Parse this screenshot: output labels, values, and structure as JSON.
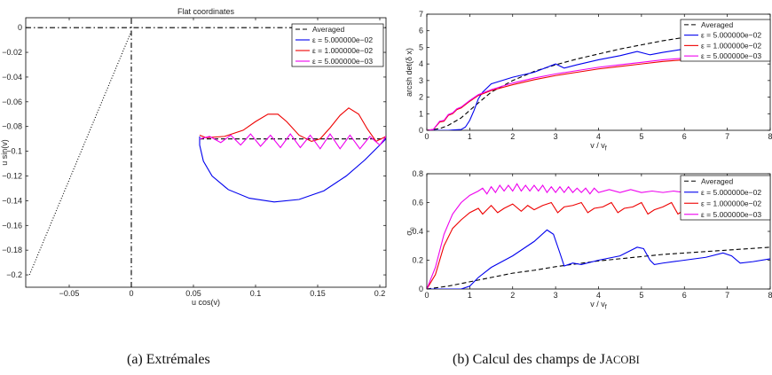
{
  "captions": {
    "a": "(a) Extrémales",
    "b_prefix": "(b) Calcul des champs de J",
    "b_smallcaps": "ACOBI"
  },
  "chart_data": [
    {
      "id": "extremales",
      "type": "line",
      "title": "Flat coordinates",
      "xlabel": "u cos(v)",
      "ylabel": "u sin(v)",
      "xlim": [
        -0.085,
        0.205
      ],
      "ylim": [
        -0.21,
        0.008
      ],
      "xticks": [
        -0.05,
        0,
        0.05,
        0.1,
        0.15,
        0.2
      ],
      "xtick_labels": [
        "−0.05",
        "0",
        "0.05",
        "0.1",
        "0.15",
        "0.2"
      ],
      "yticks": [
        0,
        -0.02,
        -0.04,
        -0.06,
        -0.08,
        -0.1,
        -0.12,
        -0.14,
        -0.16,
        -0.18,
        -0.2
      ],
      "ytick_labels": [
        "0",
        "−0.02",
        "−0.04",
        "−0.06",
        "−0.08",
        "−0.1",
        "−0.12",
        "−0.14",
        "−0.16",
        "−0.18",
        "−0.2"
      ],
      "grid": false,
      "legend_position": "top-right",
      "legend": [
        {
          "label": "Averaged",
          "color": "#000000",
          "dash": "dashed"
        },
        {
          "label": "ε = 5.000000e−02",
          "color": "#0000ee",
          "dash": "solid"
        },
        {
          "label": "ε = 1.000000e−02",
          "color": "#ee0000",
          "dash": "solid"
        },
        {
          "label": "ε = 5.000000e−03",
          "color": "#ee00ee",
          "dash": "solid"
        }
      ],
      "series": [
        {
          "color": "#000000",
          "dash": "dashed",
          "x": [
            0.055,
            0.205
          ],
          "y": [
            -0.09,
            -0.09
          ]
        },
        {
          "color": "#0000ee",
          "dash": "solid",
          "x": [
            0.055,
            0.055,
            0.058,
            0.065,
            0.078,
            0.095,
            0.115,
            0.135,
            0.155,
            0.173,
            0.188,
            0.2,
            0.205
          ],
          "y": [
            -0.088,
            -0.095,
            -0.108,
            -0.12,
            -0.131,
            -0.138,
            -0.141,
            -0.139,
            -0.132,
            -0.12,
            -0.107,
            -0.095,
            -0.09
          ]
        },
        {
          "color": "#ee0000",
          "dash": "solid",
          "x": [
            0.055,
            0.06,
            0.075,
            0.09,
            0.1,
            0.11,
            0.118,
            0.125,
            0.135,
            0.145,
            0.152,
            0.16,
            0.168,
            0.175,
            0.183,
            0.19,
            0.197,
            0.205
          ],
          "y": [
            -0.087,
            -0.089,
            -0.088,
            -0.083,
            -0.076,
            -0.07,
            -0.07,
            -0.076,
            -0.087,
            -0.092,
            -0.09,
            -0.081,
            -0.071,
            -0.065,
            -0.07,
            -0.082,
            -0.092,
            -0.088
          ]
        },
        {
          "color": "#ee00ee",
          "dash": "solid",
          "x": [
            0.055,
            0.063,
            0.072,
            0.08,
            0.088,
            0.096,
            0.104,
            0.112,
            0.12,
            0.128,
            0.136,
            0.144,
            0.152,
            0.16,
            0.168,
            0.176,
            0.184,
            0.192,
            0.2,
            0.205
          ],
          "y": [
            -0.09,
            -0.088,
            -0.093,
            -0.087,
            -0.095,
            -0.086,
            -0.096,
            -0.087,
            -0.097,
            -0.086,
            -0.097,
            -0.087,
            -0.098,
            -0.086,
            -0.098,
            -0.087,
            -0.098,
            -0.088,
            -0.095,
            -0.088
          ]
        },
        {
          "color": "#000000",
          "dash": "dashdot",
          "x": [
            -0.085,
            0.205
          ],
          "y": [
            0,
            0
          ]
        },
        {
          "color": "#000000",
          "dash": "dashdot",
          "x": [
            0,
            0
          ],
          "y": [
            -0.21,
            0.008
          ]
        },
        {
          "color": "#000000",
          "dash": "dotted",
          "x": [
            -0.082,
            0
          ],
          "y": [
            -0.2,
            -0.003
          ]
        }
      ]
    },
    {
      "id": "arcsh",
      "type": "line",
      "title": "",
      "xlabel": "v / v_f",
      "ylabel": "arcsh det(δ x)",
      "xlim": [
        0,
        8
      ],
      "ylim": [
        0,
        7
      ],
      "xticks": [
        0,
        1,
        2,
        3,
        4,
        5,
        6,
        7,
        8
      ],
      "yticks": [
        0,
        1,
        2,
        3,
        4,
        5,
        6,
        7
      ],
      "grid": false,
      "legend_position": "top-right",
      "legend": [
        {
          "label": "Averaged",
          "color": "#000000",
          "dash": "dashed"
        },
        {
          "label": "ε = 5.000000e−02",
          "color": "#0000ee",
          "dash": "solid"
        },
        {
          "label": "ε = 1.000000e−02",
          "color": "#ee0000",
          "dash": "solid"
        },
        {
          "label": "ε = 5.000000e−03",
          "color": "#ee00ee",
          "dash": "solid"
        }
      ],
      "series": [
        {
          "color": "#000000",
          "dash": "dashed",
          "x": [
            0,
            0.3,
            0.5,
            0.8,
            1.0,
            1.2,
            1.5,
            2.0,
            2.5,
            3.0,
            3.5,
            4.0,
            4.5,
            5.0,
            5.5,
            6.0,
            6.5,
            7.0,
            7.5,
            8.0
          ],
          "y": [
            0,
            0.1,
            0.3,
            0.75,
            1.2,
            1.65,
            2.3,
            3.0,
            3.55,
            3.95,
            4.3,
            4.6,
            4.9,
            5.15,
            5.4,
            5.6,
            5.8,
            5.95,
            6.1,
            6.25
          ]
        },
        {
          "color": "#0000ee",
          "dash": "solid",
          "x": [
            0,
            0.5,
            0.8,
            0.9,
            1.0,
            1.1,
            1.2,
            1.3,
            1.5,
            2.0,
            2.5,
            2.8,
            3.0,
            3.2,
            3.5,
            4.0,
            4.5,
            4.9,
            5.2,
            5.5,
            6.0,
            6.5,
            7.0,
            7.5,
            8.0
          ],
          "y": [
            0,
            0,
            0.05,
            0.2,
            0.6,
            1.2,
            1.9,
            2.3,
            2.8,
            3.2,
            3.5,
            3.8,
            4.0,
            3.75,
            3.95,
            4.25,
            4.5,
            4.75,
            4.55,
            4.7,
            4.9,
            5.0,
            5.1,
            5.15,
            5.2
          ]
        },
        {
          "color": "#ee0000",
          "dash": "solid",
          "x": [
            0,
            0.15,
            0.3,
            0.4,
            0.5,
            0.6,
            0.7,
            0.8,
            1.0,
            1.2,
            1.5,
            2.0,
            2.5,
            3.0,
            3.5,
            4.0,
            4.5,
            5.0,
            5.5,
            6.0,
            6.5,
            7.0,
            7.5,
            8.0
          ],
          "y": [
            0,
            0.05,
            0.5,
            0.55,
            0.9,
            1.0,
            1.25,
            1.35,
            1.75,
            2.1,
            2.4,
            2.75,
            3.05,
            3.3,
            3.5,
            3.7,
            3.85,
            4.0,
            4.15,
            4.25,
            4.4,
            4.5,
            4.6,
            4.7
          ]
        },
        {
          "color": "#ee00ee",
          "dash": "solid",
          "x": [
            0,
            0.15,
            0.3,
            0.4,
            0.5,
            0.6,
            0.7,
            0.8,
            1.0,
            1.2,
            1.5,
            2.0,
            2.5,
            3.0,
            3.5,
            4.0,
            4.5,
            5.0,
            5.5,
            6.0,
            6.5,
            7.0,
            7.5,
            8.0
          ],
          "y": [
            0,
            0.05,
            0.55,
            0.6,
            0.95,
            1.05,
            1.3,
            1.4,
            1.8,
            2.15,
            2.45,
            2.85,
            3.15,
            3.4,
            3.6,
            3.8,
            3.95,
            4.1,
            4.25,
            4.35,
            4.5,
            4.6,
            4.7,
            4.8
          ]
        }
      ]
    },
    {
      "id": "sigma",
      "type": "line",
      "title": "",
      "xlabel": "v / v_f",
      "ylabel": "σ_n",
      "xlim": [
        0,
        8
      ],
      "ylim": [
        0,
        0.8
      ],
      "xticks": [
        0,
        1,
        2,
        3,
        4,
        5,
        6,
        7,
        8
      ],
      "yticks": [
        0,
        0.2,
        0.4,
        0.6,
        0.8
      ],
      "ytick_labels": [
        "0",
        "0.2",
        "0.4",
        "0.6",
        "0.8"
      ],
      "grid": false,
      "legend_position": "top-right",
      "legend": [
        {
          "label": "Averaged",
          "color": "#000000",
          "dash": "dashed"
        },
        {
          "label": "ε = 5.000000e−02",
          "color": "#0000ee",
          "dash": "solid"
        },
        {
          "label": "ε = 1.000000e−02",
          "color": "#ee0000",
          "dash": "solid"
        },
        {
          "label": "ε = 5.000000e−03",
          "color": "#ee00ee",
          "dash": "solid"
        }
      ],
      "series": [
        {
          "color": "#000000",
          "dash": "dashed",
          "x": [
            0,
            0.5,
            1,
            1.5,
            2,
            2.5,
            3,
            3.5,
            4,
            4.5,
            5,
            5.5,
            6,
            6.5,
            7,
            7.5,
            8
          ],
          "y": [
            0,
            0.02,
            0.05,
            0.08,
            0.11,
            0.13,
            0.155,
            0.175,
            0.195,
            0.21,
            0.225,
            0.24,
            0.25,
            0.26,
            0.27,
            0.28,
            0.29
          ]
        },
        {
          "color": "#0000ee",
          "dash": "solid",
          "x": [
            0,
            0.8,
            1.0,
            1.2,
            1.5,
            2.0,
            2.5,
            2.8,
            2.95,
            3.1,
            3.2,
            3.4,
            3.6,
            4.0,
            4.5,
            4.9,
            5.05,
            5.2,
            5.3,
            5.5,
            6.0,
            6.5,
            6.9,
            7.1,
            7.3,
            7.6,
            8.0
          ],
          "y": [
            0,
            0,
            0.02,
            0.08,
            0.15,
            0.23,
            0.33,
            0.41,
            0.38,
            0.25,
            0.16,
            0.18,
            0.17,
            0.2,
            0.23,
            0.29,
            0.28,
            0.2,
            0.17,
            0.18,
            0.2,
            0.22,
            0.25,
            0.23,
            0.18,
            0.19,
            0.21
          ]
        },
        {
          "color": "#ee0000",
          "dash": "solid",
          "x": [
            0,
            0.2,
            0.4,
            0.6,
            0.8,
            1.0,
            1.2,
            1.3,
            1.5,
            1.65,
            1.8,
            2.0,
            2.2,
            2.35,
            2.5,
            2.7,
            2.9,
            3.05,
            3.2,
            3.4,
            3.6,
            3.75,
            3.9,
            4.1,
            4.3,
            4.45,
            4.6,
            4.8,
            5.0,
            5.15,
            5.3,
            5.5,
            5.7,
            5.85,
            6.0,
            6.2,
            6.4,
            6.55,
            6.7,
            6.9,
            7.1,
            7.25,
            7.4,
            7.6,
            7.8,
            8.0
          ],
          "y": [
            0,
            0.1,
            0.3,
            0.42,
            0.48,
            0.53,
            0.56,
            0.52,
            0.58,
            0.53,
            0.56,
            0.59,
            0.54,
            0.58,
            0.55,
            0.58,
            0.6,
            0.53,
            0.57,
            0.58,
            0.6,
            0.53,
            0.56,
            0.57,
            0.6,
            0.53,
            0.56,
            0.57,
            0.6,
            0.52,
            0.55,
            0.57,
            0.6,
            0.52,
            0.55,
            0.57,
            0.6,
            0.52,
            0.55,
            0.57,
            0.6,
            0.52,
            0.55,
            0.57,
            0.6,
            0.51
          ]
        },
        {
          "color": "#ee00ee",
          "dash": "solid",
          "x": [
            0,
            0.2,
            0.4,
            0.6,
            0.8,
            1.0,
            1.2,
            1.3,
            1.4,
            1.5,
            1.6,
            1.7,
            1.8,
            1.9,
            2.0,
            2.1,
            2.2,
            2.3,
            2.4,
            2.5,
            2.6,
            2.7,
            2.8,
            2.9,
            3.0,
            3.1,
            3.2,
            3.3,
            3.4,
            3.5,
            3.6,
            3.7,
            3.8,
            3.9,
            4.0,
            4.25,
            4.5,
            4.75,
            5.0,
            5.25,
            5.5,
            5.75,
            6.0,
            6.25,
            6.5,
            6.75,
            7.0,
            7.25,
            7.5,
            7.75,
            8.0
          ],
          "y": [
            0,
            0.15,
            0.38,
            0.52,
            0.6,
            0.65,
            0.68,
            0.7,
            0.66,
            0.71,
            0.67,
            0.72,
            0.68,
            0.72,
            0.68,
            0.73,
            0.68,
            0.72,
            0.68,
            0.72,
            0.68,
            0.72,
            0.67,
            0.71,
            0.67,
            0.71,
            0.67,
            0.71,
            0.67,
            0.7,
            0.67,
            0.7,
            0.66,
            0.7,
            0.67,
            0.69,
            0.67,
            0.69,
            0.67,
            0.68,
            0.67,
            0.68,
            0.67,
            0.68,
            0.67,
            0.68,
            0.67,
            0.68,
            0.66,
            0.68,
            0.67
          ]
        }
      ]
    }
  ]
}
